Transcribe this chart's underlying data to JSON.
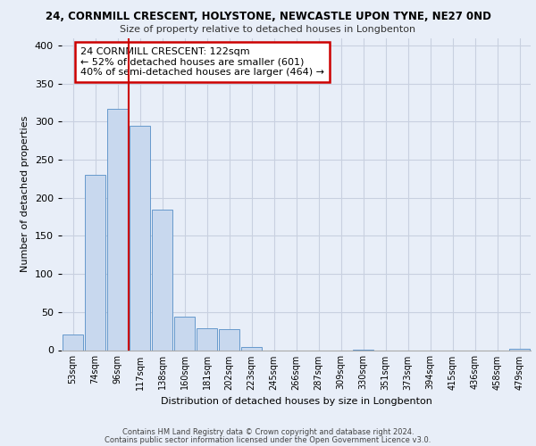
{
  "title_line1": "24, CORNMILL CRESCENT, HOLYSTONE, NEWCASTLE UPON TYNE, NE27 0ND",
  "title_line2": "Size of property relative to detached houses in Longbenton",
  "xlabel": "Distribution of detached houses by size in Longbenton",
  "ylabel": "Number of detached properties",
  "bar_labels": [
    "53sqm",
    "74sqm",
    "96sqm",
    "117sqm",
    "138sqm",
    "160sqm",
    "181sqm",
    "202sqm",
    "223sqm",
    "245sqm",
    "266sqm",
    "287sqm",
    "309sqm",
    "330sqm",
    "351sqm",
    "373sqm",
    "394sqm",
    "415sqm",
    "436sqm",
    "458sqm",
    "479sqm"
  ],
  "bar_heights": [
    20,
    230,
    317,
    295,
    184,
    44,
    29,
    27,
    4,
    0,
    0,
    0,
    0,
    1,
    0,
    0,
    0,
    0,
    0,
    0,
    2
  ],
  "bar_color": "#c8d8ee",
  "bar_edge_color": "#6699cc",
  "vline_x": 2.5,
  "vline_color": "#cc0000",
  "annotation_title": "24 CORNMILL CRESCENT: 122sqm",
  "annotation_line1": "← 52% of detached houses are smaller (601)",
  "annotation_line2": "40% of semi-detached houses are larger (464) →",
  "annotation_box_edge": "#cc0000",
  "ylim": [
    0,
    410
  ],
  "yticks": [
    0,
    50,
    100,
    150,
    200,
    250,
    300,
    350,
    400
  ],
  "footer_line1": "Contains HM Land Registry data © Crown copyright and database right 2024.",
  "footer_line2": "Contains public sector information licensed under the Open Government Licence v3.0.",
  "bg_color": "#e8eef8",
  "plot_bg_color": "#e8eef8",
  "grid_color": "#c8d0e0"
}
